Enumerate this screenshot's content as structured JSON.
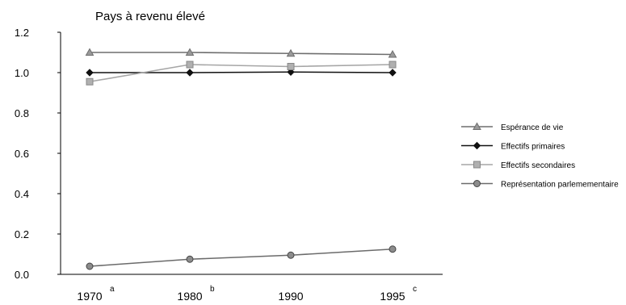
{
  "chart_data": {
    "type": "line",
    "title": "Pays à revenu élevé",
    "xlabel": "",
    "ylabel": "",
    "categories": [
      "1970",
      "1980",
      "1990",
      "1995"
    ],
    "category_superscripts": [
      "a",
      "b",
      "",
      "c"
    ],
    "ylim": [
      0,
      1.2
    ],
    "yticks": [
      "0.0",
      "0.2",
      "0.4",
      "0.6",
      "0.8",
      "1.0",
      "1.2"
    ],
    "grid": false,
    "legend_position": "right",
    "series": [
      {
        "name": "Espérance de vie",
        "values": [
          1.1,
          1.1,
          1.095,
          1.09
        ],
        "marker": "triangle",
        "color": "#6e6e6e",
        "marker_fill": "#9a9a9a"
      },
      {
        "name": "Effectifs primaires",
        "values": [
          1.0,
          1.0,
          1.003,
          1.0
        ],
        "marker": "diamond",
        "color": "#111111",
        "marker_fill": "#111111"
      },
      {
        "name": "Effectifs secondaires",
        "values": [
          0.955,
          1.04,
          1.03,
          1.04
        ],
        "marker": "square",
        "color": "#a6a6a6",
        "marker_fill": "#b0b0b0"
      },
      {
        "name": "Représentation parlemementaire",
        "values": [
          0.04,
          0.075,
          0.095,
          0.125
        ],
        "marker": "circle",
        "color": "#6b6b6b",
        "marker_fill": "#8c8c8c"
      }
    ]
  }
}
